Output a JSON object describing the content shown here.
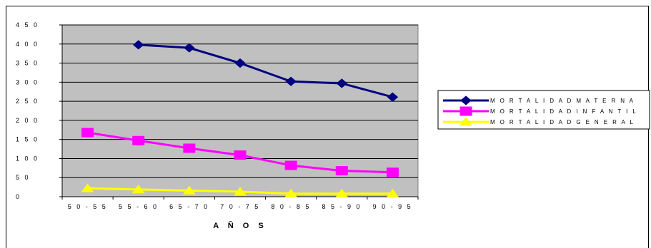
{
  "chart_data": {
    "type": "line",
    "title": "",
    "xlabel": "A Ñ O S",
    "ylabel": "",
    "categories": [
      "5 0 - 5 5",
      "5 5 - 6 0",
      "6 5 - 7 0",
      "7 0 - 7 5",
      "8 0 - 8 5",
      "8 5 - 9 0",
      "9 0 - 9 5"
    ],
    "ylim": [
      0,
      450
    ],
    "yticks": [
      0,
      50,
      100,
      150,
      200,
      250,
      300,
      350,
      400,
      450
    ],
    "ytick_labels": [
      "0",
      "5 0",
      "1 0 0",
      "1 5 0",
      "2 0 0",
      "2 5 0",
      "3 0 0",
      "3 5 0",
      "4 0 0",
      "4 5 0"
    ],
    "grid": true,
    "legend_position": "right",
    "plot_background": "#c0c0c0",
    "series": [
      {
        "name": "M O R T A L I D A D   M A T E R N A",
        "color": "#000080",
        "marker": "diamond",
        "values": [
          null,
          398,
          390,
          350,
          302,
          297,
          261
        ]
      },
      {
        "name": "M O R T A L I D A D   I N F A N T I L",
        "color": "#ff00ff",
        "marker": "square",
        "values": [
          168,
          147,
          127,
          109,
          82,
          68,
          64
        ]
      },
      {
        "name": "M O R T A L I D A D   G E N E R A L",
        "color": "#ffff00",
        "marker": "triangle",
        "values": [
          22,
          19,
          16,
          13,
          8,
          8,
          8
        ]
      }
    ]
  }
}
